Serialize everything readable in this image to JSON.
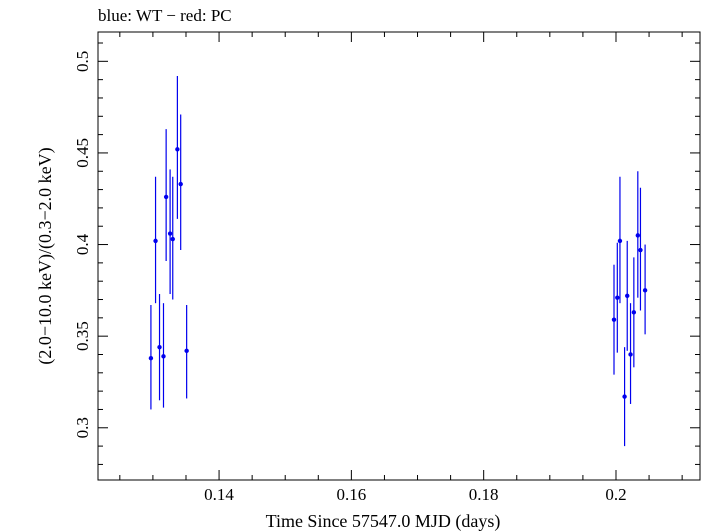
{
  "chart_data": {
    "type": "scatter",
    "title": "blue: WT − red: PC",
    "xlabel": "Time Since 57547.0 MJD (days)",
    "ylabel": "(2.0−10.0 keV)/(0.3−2.0 keV)",
    "xlim": [
      0.1217,
      0.2127
    ],
    "ylim": [
      0.2715,
      0.516
    ],
    "x_ticks": [
      0.14,
      0.16,
      0.18,
      0.2
    ],
    "x_tick_labels": [
      "0.14",
      "0.16",
      "0.18",
      "0.2"
    ],
    "y_ticks": [
      0.3,
      0.35,
      0.4,
      0.45,
      0.5
    ],
    "y_tick_labels": [
      "0.3",
      "0.35",
      "0.4",
      "0.45",
      "0.5"
    ],
    "grid": false,
    "error_bars": true,
    "series": [
      {
        "color": "#0000ee",
        "points": [
          {
            "x": 0.1297,
            "y": 0.338,
            "ylo": 0.31,
            "yhi": 0.367
          },
          {
            "x": 0.1304,
            "y": 0.402,
            "ylo": 0.368,
            "yhi": 0.437
          },
          {
            "x": 0.131,
            "y": 0.344,
            "ylo": 0.315,
            "yhi": 0.373
          },
          {
            "x": 0.1316,
            "y": 0.339,
            "ylo": 0.311,
            "yhi": 0.368
          },
          {
            "x": 0.132,
            "y": 0.426,
            "ylo": 0.391,
            "yhi": 0.463
          },
          {
            "x": 0.1326,
            "y": 0.406,
            "ylo": 0.373,
            "yhi": 0.441
          },
          {
            "x": 0.133,
            "y": 0.403,
            "ylo": 0.37,
            "yhi": 0.437
          },
          {
            "x": 0.1337,
            "y": 0.452,
            "ylo": 0.414,
            "yhi": 0.492
          },
          {
            "x": 0.1342,
            "y": 0.433,
            "ylo": 0.397,
            "yhi": 0.471
          },
          {
            "x": 0.1351,
            "y": 0.342,
            "ylo": 0.316,
            "yhi": 0.367
          },
          {
            "x": 0.1997,
            "y": 0.359,
            "ylo": 0.329,
            "yhi": 0.389
          },
          {
            "x": 0.2002,
            "y": 0.371,
            "ylo": 0.341,
            "yhi": 0.401
          },
          {
            "x": 0.2006,
            "y": 0.402,
            "ylo": 0.368,
            "yhi": 0.437
          },
          {
            "x": 0.2013,
            "y": 0.317,
            "ylo": 0.29,
            "yhi": 0.344
          },
          {
            "x": 0.2017,
            "y": 0.372,
            "ylo": 0.342,
            "yhi": 0.402
          },
          {
            "x": 0.2022,
            "y": 0.34,
            "ylo": 0.313,
            "yhi": 0.368
          },
          {
            "x": 0.2027,
            "y": 0.363,
            "ylo": 0.333,
            "yhi": 0.393
          },
          {
            "x": 0.2033,
            "y": 0.405,
            "ylo": 0.371,
            "yhi": 0.44
          },
          {
            "x": 0.2037,
            "y": 0.397,
            "ylo": 0.364,
            "yhi": 0.431
          },
          {
            "x": 0.2044,
            "y": 0.375,
            "ylo": 0.351,
            "yhi": 0.4
          }
        ]
      }
    ]
  }
}
